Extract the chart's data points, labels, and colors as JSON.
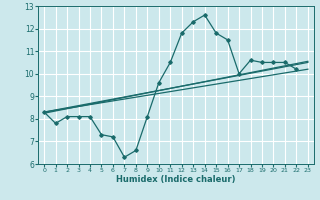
{
  "xlabel": "Humidex (Indice chaleur)",
  "bg_color": "#cce8ec",
  "grid_color": "#ffffff",
  "line_color": "#1a6b6b",
  "xlim": [
    -0.5,
    23.5
  ],
  "ylim": [
    6,
    13
  ],
  "xticks": [
    0,
    1,
    2,
    3,
    4,
    5,
    6,
    7,
    8,
    9,
    10,
    11,
    12,
    13,
    14,
    15,
    16,
    17,
    18,
    19,
    20,
    21,
    22,
    23
  ],
  "yticks": [
    6,
    7,
    8,
    9,
    10,
    11,
    12,
    13
  ],
  "hours": [
    0,
    1,
    2,
    3,
    4,
    5,
    6,
    7,
    8,
    9,
    10,
    11,
    12,
    13,
    14,
    15,
    16,
    17,
    18,
    19,
    20,
    21,
    22,
    23
  ],
  "humidex_main": [
    8.3,
    7.8,
    8.1,
    8.1,
    8.1,
    7.3,
    7.2,
    6.3,
    6.6,
    8.1,
    9.6,
    10.5,
    11.8,
    12.3,
    12.6,
    11.8,
    11.5,
    10.0,
    10.6,
    10.5,
    10.5,
    10.5,
    10.2,
    null
  ],
  "line2_start": 8.3,
  "line2_end": 10.2,
  "line3_start": 8.3,
  "line3_end": 10.5,
  "line4_start": 8.25,
  "line4_end": 10.55
}
